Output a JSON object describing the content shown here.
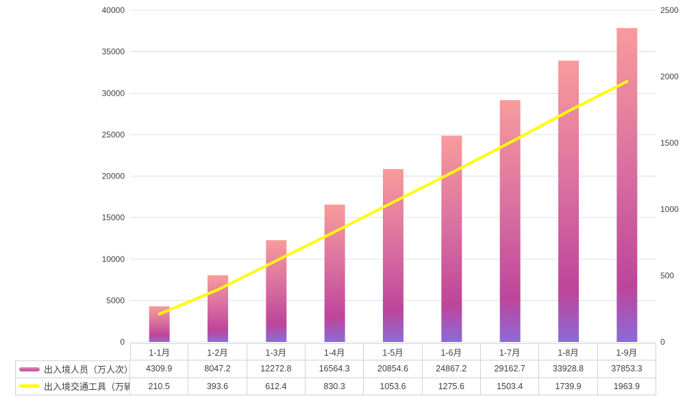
{
  "chart_data": {
    "type": "combo",
    "title": "",
    "categories": [
      "1-1月",
      "1-2月",
      "1-3月",
      "1-4月",
      "1-5月",
      "1-6月",
      "1-7月",
      "1-8月",
      "1-9月"
    ],
    "series": [
      {
        "name": "出入境人员（万人次）",
        "type": "bar",
        "axis": "left",
        "values": [
          4309.9,
          8047.2,
          12272.8,
          16564.3,
          20854.6,
          24867.2,
          29162.7,
          33928.8,
          37853.3
        ]
      },
      {
        "name": "出入境交通工具（万辆次）",
        "type": "line",
        "axis": "right",
        "values": [
          210.5,
          393.6,
          612.4,
          830.3,
          1053.6,
          1275.6,
          1503.4,
          1739.9,
          1963.9
        ]
      }
    ],
    "left_axis": {
      "min": 0,
      "max": 40000,
      "step": 5000,
      "tick_labels": [
        "0",
        "5000",
        "10000",
        "15000",
        "20000",
        "25000",
        "30000",
        "35000",
        "40000"
      ]
    },
    "right_axis": {
      "min": 0,
      "max": 2500,
      "step": 500,
      "tick_labels": [
        "0",
        "500",
        "1000",
        "1500",
        "2000",
        "2500"
      ]
    },
    "grid": true,
    "legend_position": "bottom-table",
    "colors": {
      "bar_gradient": [
        "#F99B9B",
        "#D86FA0",
        "#BE459A",
        "#8B6BD8"
      ],
      "bar_gradient_stops": [
        0,
        0.45,
        0.82,
        1
      ],
      "line": "#FFFF00",
      "grid_line": "#D9E0EA",
      "table_border": "#C9D3E4",
      "text": "#404040",
      "legend_bar_swatch_top": "#E089B1",
      "legend_bar_swatch_bottom": "#BE4795"
    }
  }
}
